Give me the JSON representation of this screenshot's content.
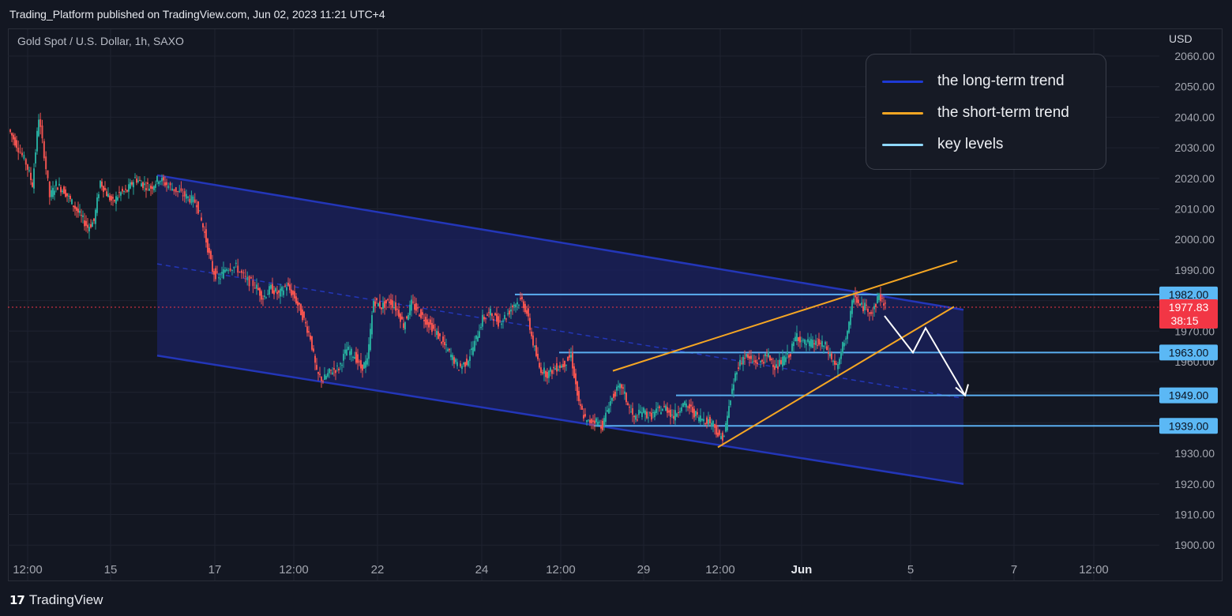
{
  "header": {
    "publisher": "Trading_Platform published on TradingView.com, Jun 02, 2023 11:21 UTC+4"
  },
  "chart_header": {
    "symbol": "Gold Spot / U.S. Dollar, 1h, SAXO",
    "currency": "USD"
  },
  "legend": [
    {
      "label": "the long-term trend",
      "color": "#1e3ad6"
    },
    {
      "label": "the short-term trend",
      "color": "#f5a623"
    },
    {
      "label": "key levels",
      "color": "#8fd8ff"
    }
  ],
  "footer": {
    "logo_mark": "17",
    "logo_text": "TradingView"
  },
  "chart_data": {
    "type": "candlestick",
    "y_axis": {
      "min": 1895,
      "max": 2065,
      "ticks": [
        "2060.00",
        "2050.00",
        "2040.00",
        "2030.00",
        "2020.00",
        "2010.00",
        "2000.00",
        "1990.00",
        "1970.00",
        "1960.00",
        "1930.00",
        "1920.00",
        "1910.00",
        "1900.00"
      ]
    },
    "x_axis": {
      "ticks": [
        "12:00",
        "15",
        "17",
        "12:00",
        "22",
        "24",
        "12:00",
        "29",
        "12:00",
        "Jun",
        "5",
        "7",
        "12:00"
      ],
      "bold_ticks": [
        "Jun"
      ]
    },
    "price_points": [
      [
        0,
        2036
      ],
      [
        10,
        2031
      ],
      [
        22,
        2025
      ],
      [
        30,
        2018
      ],
      [
        38,
        2040
      ],
      [
        45,
        2028
      ],
      [
        52,
        2014
      ],
      [
        60,
        2018
      ],
      [
        70,
        2016
      ],
      [
        80,
        2012
      ],
      [
        90,
        2008
      ],
      [
        100,
        2004
      ],
      [
        108,
        2006
      ],
      [
        116,
        2019
      ],
      [
        124,
        2015
      ],
      [
        132,
        2012
      ],
      [
        140,
        2015
      ],
      [
        150,
        2016
      ],
      [
        160,
        2020
      ],
      [
        170,
        2018
      ],
      [
        180,
        2017
      ],
      [
        190,
        2020
      ],
      [
        200,
        2018
      ],
      [
        212,
        2016
      ],
      [
        225,
        2014
      ],
      [
        238,
        2012
      ],
      [
        248,
        2002
      ],
      [
        258,
        1990
      ],
      [
        266,
        1987
      ],
      [
        276,
        1991
      ],
      [
        288,
        1991
      ],
      [
        300,
        1987
      ],
      [
        312,
        1985
      ],
      [
        322,
        1981
      ],
      [
        332,
        1984
      ],
      [
        342,
        1982
      ],
      [
        352,
        1985
      ],
      [
        362,
        1981
      ],
      [
        372,
        1975
      ],
      [
        382,
        1968
      ],
      [
        390,
        1956
      ],
      [
        398,
        1954
      ],
      [
        408,
        1957
      ],
      [
        418,
        1958
      ],
      [
        428,
        1964
      ],
      [
        438,
        1962
      ],
      [
        446,
        1958
      ],
      [
        454,
        1960
      ],
      [
        462,
        1980
      ],
      [
        472,
        1978
      ],
      [
        482,
        1980
      ],
      [
        492,
        1977
      ],
      [
        500,
        1972
      ],
      [
        510,
        1979
      ],
      [
        520,
        1976
      ],
      [
        530,
        1973
      ],
      [
        540,
        1970
      ],
      [
        550,
        1966
      ],
      [
        560,
        1962
      ],
      [
        570,
        1958
      ],
      [
        580,
        1960
      ],
      [
        590,
        1966
      ],
      [
        600,
        1974
      ],
      [
        610,
        1976
      ],
      [
        620,
        1973
      ],
      [
        630,
        1975
      ],
      [
        640,
        1979
      ],
      [
        650,
        1980
      ],
      [
        656,
        1976
      ],
      [
        664,
        1966
      ],
      [
        672,
        1958
      ],
      [
        682,
        1956
      ],
      [
        692,
        1958
      ],
      [
        702,
        1959
      ],
      [
        712,
        1962
      ],
      [
        722,
        1946
      ],
      [
        732,
        1940
      ],
      [
        742,
        1941
      ],
      [
        752,
        1939
      ],
      [
        760,
        1946
      ],
      [
        768,
        1950
      ],
      [
        776,
        1952
      ],
      [
        784,
        1946
      ],
      [
        792,
        1941
      ],
      [
        802,
        1944
      ],
      [
        812,
        1942
      ],
      [
        822,
        1944
      ],
      [
        832,
        1945
      ],
      [
        842,
        1942
      ],
      [
        852,
        1946
      ],
      [
        862,
        1945
      ],
      [
        872,
        1942
      ],
      [
        882,
        1941
      ],
      [
        892,
        1940
      ],
      [
        900,
        1935
      ],
      [
        906,
        1936
      ],
      [
        914,
        1948
      ],
      [
        922,
        1958
      ],
      [
        932,
        1962
      ],
      [
        942,
        1960
      ],
      [
        952,
        1960
      ],
      [
        962,
        1962
      ],
      [
        972,
        1958
      ],
      [
        982,
        1961
      ],
      [
        990,
        1963
      ],
      [
        998,
        1969
      ],
      [
        1006,
        1966
      ],
      [
        1014,
        1966
      ],
      [
        1024,
        1966
      ],
      [
        1034,
        1965
      ],
      [
        1044,
        1960
      ],
      [
        1050,
        1958
      ],
      [
        1056,
        1965
      ],
      [
        1064,
        1972
      ],
      [
        1070,
        1982
      ],
      [
        1078,
        1978
      ],
      [
        1086,
        1978
      ],
      [
        1094,
        1976
      ],
      [
        1102,
        1982
      ],
      [
        1110,
        1978
      ]
    ],
    "key_levels": [
      1982.0,
      1963.0,
      1949.0,
      1939.0
    ],
    "current_price": "1977.83",
    "countdown": "38:15",
    "price_labels": [
      "1982.00",
      "1963.00",
      "1949.00",
      "1939.00"
    ],
    "channel": {
      "upper": [
        [
          187,
          2021
        ],
        [
          1208,
          1977
        ]
      ],
      "mid": [
        [
          187,
          1992
        ],
        [
          1208,
          1948
        ]
      ],
      "lower": [
        [
          187,
          1962
        ],
        [
          1208,
          1920
        ]
      ]
    },
    "short_term_trend": {
      "upper": [
        [
          764,
          1957
        ],
        [
          1200,
          1993
        ]
      ],
      "lower": [
        [
          897,
          1932
        ],
        [
          1196,
          1978
        ]
      ]
    },
    "projection": [
      [
        1120,
        1975
      ],
      [
        1156,
        1963
      ],
      [
        1172,
        1971
      ],
      [
        1222,
        1949
      ]
    ],
    "colors": {
      "up": "#26a69a",
      "down": "#ef5350",
      "channel_fill": "#1b2260",
      "channel_line": "#2336b8",
      "orange": "#f5a623",
      "level": "#5aaef0",
      "level_label": "#5bb8f5",
      "price_label": "#f23645"
    }
  }
}
